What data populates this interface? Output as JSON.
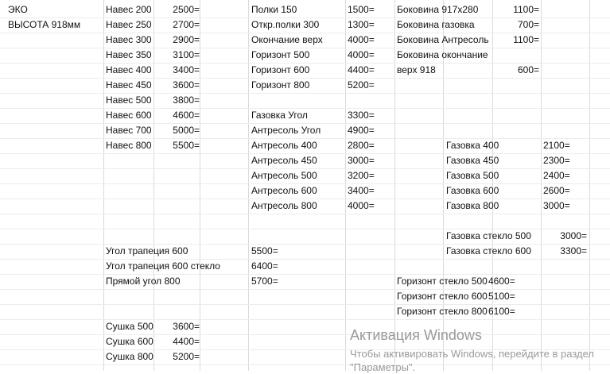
{
  "sheet": {
    "columns": [
      [
        "ЭКО",
        "ВЫСОТА 918мм",
        null,
        null,
        null,
        null,
        null,
        null,
        null,
        null,
        null,
        null,
        null,
        null,
        null,
        null,
        null,
        null,
        null,
        null,
        null,
        null,
        null,
        null
      ],
      [
        "Навес 200",
        "Навес 250",
        "Навес 300",
        "Навес 350",
        "Навес 400",
        "Навес 450",
        "Навес 500",
        "Навес 600",
        "Навес 700",
        "Навес 800",
        null,
        null,
        null,
        null,
        null,
        null,
        "Угол трапеция 600",
        "Угол трапеция 600 стекло",
        "Прямой угол 800",
        null,
        null,
        "Сушка 500",
        "Сушка 600",
        "Сушка 800"
      ],
      [
        "2500=",
        "2700=",
        "2900=",
        "3100=",
        "3400=",
        "3600=",
        "3800=",
        "4600=",
        "5000=",
        "5500=",
        null,
        null,
        null,
        null,
        null,
        null,
        null,
        null,
        null,
        null,
        null,
        "3600=",
        "4400=",
        "5200="
      ],
      [
        "Полки 150",
        "Откр.полки 300",
        "Окончание верх",
        "Горизонт 500",
        "Горизонт 600",
        "Горизонт 800",
        null,
        "Газовка Угол",
        "Антресоль Угол",
        "Антресоль 400",
        "Антресоль 450",
        "Антресоль 500",
        "Антресоль 600",
        "Антресоль 800",
        null,
        null,
        "5500=",
        "6400=",
        "5700=",
        null,
        null,
        null,
        null,
        null
      ],
      [
        "1500=",
        "1300=",
        "4000=",
        "4000=",
        "4400=",
        "5200=",
        null,
        "3300=",
        "4900=",
        "2800=",
        "3000=",
        "3200=",
        "3400=",
        "4000=",
        null,
        null,
        null,
        null,
        null,
        null,
        null,
        null,
        null,
        null
      ],
      [
        "Боковина 917x280",
        "Боковина газовка",
        "Боковина Антресоль",
        "Боковина окончание",
        "верх 918",
        null,
        null,
        null,
        null,
        null,
        null,
        null,
        null,
        null,
        null,
        null,
        null,
        null,
        "Горизонт стекло 500",
        "Горизонт стекло 600",
        "Горизонт стекло 800",
        null,
        null,
        null
      ],
      [
        "1100=",
        "700=",
        "1100=",
        null,
        "600=",
        null,
        null,
        null,
        null,
        null,
        null,
        null,
        null,
        null,
        null,
        null,
        null,
        null,
        null,
        null,
        null,
        null,
        null,
        null
      ],
      [
        null,
        null,
        null,
        null,
        null,
        null,
        null,
        null,
        null,
        "Газовка 400",
        "Газовка 450",
        "Газовка 500",
        "Газовка 600",
        "Газовка 800",
        null,
        "Газовка стекло 500",
        "Газовка стекло 600",
        null,
        null,
        null,
        null,
        null,
        null,
        null
      ],
      [
        null,
        null,
        null,
        null,
        null,
        null,
        null,
        null,
        null,
        "2100=",
        "2300=",
        "2400=",
        "2600=",
        "3000=",
        null,
        null,
        null,
        null,
        null,
        null,
        null,
        null,
        null,
        null
      ],
      [
        null,
        null,
        null,
        null,
        null,
        null,
        null,
        null,
        null,
        null,
        null,
        null,
        null,
        null,
        null,
        "3000=",
        "3300=",
        null,
        null,
        null,
        null,
        null,
        null,
        null
      ],
      [
        null,
        null,
        null,
        null,
        null,
        null,
        null,
        null,
        null,
        null,
        null,
        null,
        null,
        null,
        null,
        null,
        null,
        null,
        "4600=",
        "5100=",
        "6100=",
        null,
        null,
        null
      ]
    ],
    "watermark": {
      "title": "Активация Windows",
      "text": "Чтобы активировать Windows, перейдите в раздел \"Параметры\"."
    }
  }
}
